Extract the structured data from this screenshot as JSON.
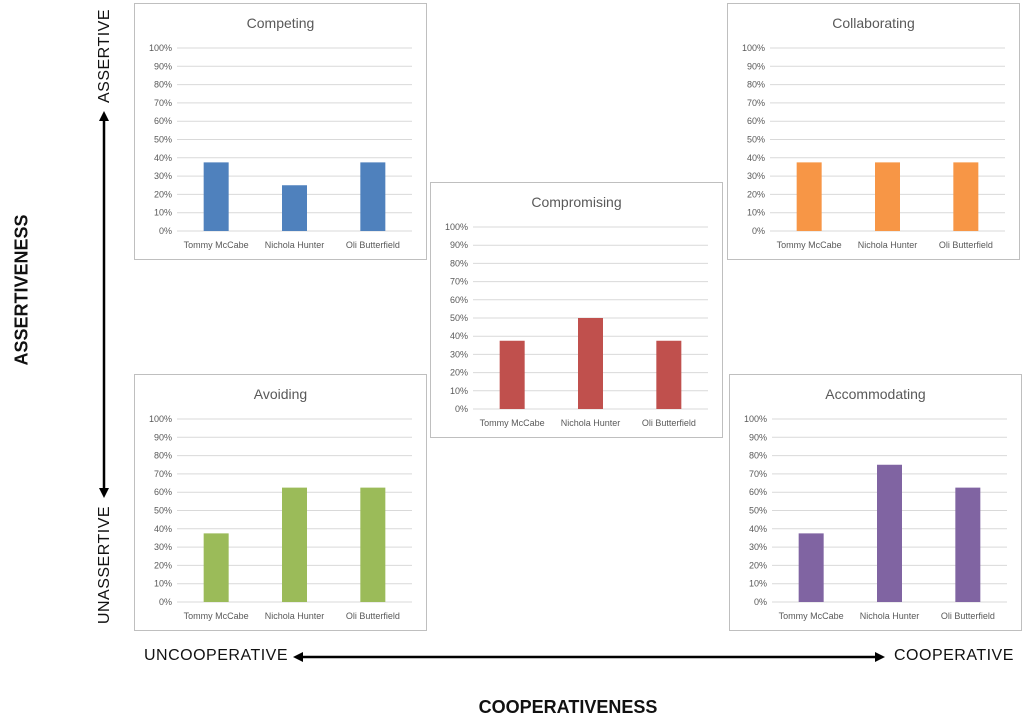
{
  "frame": {
    "y_axis_title": "ASSERTIVENESS",
    "x_axis_title": "COOPERATIVENESS",
    "y_top_label": "ASSERTIVE",
    "y_bottom_label": "UNASSERTIVE",
    "x_left_label": "UNCOOPERATIVE",
    "x_right_label": "COOPERATIVE"
  },
  "chart_data": [
    {
      "id": "competing",
      "type": "bar",
      "title": "Competing",
      "color": "#4f81bd",
      "categories": [
        "Tommy McCabe",
        "Nichola Hunter",
        "Oli Butterfield"
      ],
      "values": [
        37.5,
        25,
        37.5
      ],
      "ylim": [
        0,
        100
      ],
      "yticks": [
        "0%",
        "10%",
        "20%",
        "30%",
        "40%",
        "50%",
        "60%",
        "70%",
        "80%",
        "90%",
        "100%"
      ],
      "grid": true
    },
    {
      "id": "collaborating",
      "type": "bar",
      "title": "Collaborating",
      "color": "#f79646",
      "categories": [
        "Tommy McCabe",
        "Nichola Hunter",
        "Oli Butterfield"
      ],
      "values": [
        37.5,
        37.5,
        37.5
      ],
      "ylim": [
        0,
        100
      ],
      "yticks": [
        "0%",
        "10%",
        "20%",
        "30%",
        "40%",
        "50%",
        "60%",
        "70%",
        "80%",
        "90%",
        "100%"
      ],
      "grid": true
    },
    {
      "id": "compromising",
      "type": "bar",
      "title": "Compromising",
      "color": "#c0504d",
      "categories": [
        "Tommy McCabe",
        "Nichola Hunter",
        "Oli Butterfield"
      ],
      "values": [
        37.5,
        50,
        37.5
      ],
      "ylim": [
        0,
        100
      ],
      "yticks": [
        "0%",
        "10%",
        "20%",
        "30%",
        "40%",
        "50%",
        "60%",
        "70%",
        "80%",
        "90%",
        "100%"
      ],
      "grid": true
    },
    {
      "id": "avoiding",
      "type": "bar",
      "title": "Avoiding",
      "color": "#9bbb59",
      "categories": [
        "Tommy McCabe",
        "Nichola Hunter",
        "Oli Butterfield"
      ],
      "values": [
        37.5,
        62.5,
        62.5
      ],
      "ylim": [
        0,
        100
      ],
      "yticks": [
        "0%",
        "10%",
        "20%",
        "30%",
        "40%",
        "50%",
        "60%",
        "70%",
        "80%",
        "90%",
        "100%"
      ],
      "grid": true
    },
    {
      "id": "accommodating",
      "type": "bar",
      "title": "Accommodating",
      "color": "#8064a2",
      "categories": [
        "Tommy McCabe",
        "Nichola Hunter",
        "Oli Butterfield"
      ],
      "values": [
        37.5,
        75,
        62.5
      ],
      "ylim": [
        0,
        100
      ],
      "yticks": [
        "0%",
        "10%",
        "20%",
        "30%",
        "40%",
        "50%",
        "60%",
        "70%",
        "80%",
        "90%",
        "100%"
      ],
      "grid": true
    }
  ]
}
